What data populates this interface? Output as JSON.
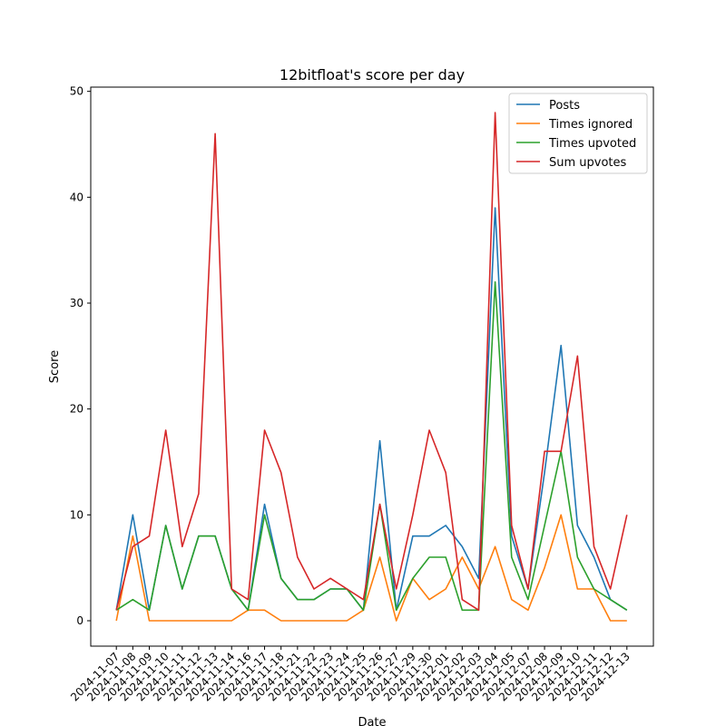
{
  "chart_data": {
    "type": "line",
    "title": "12bitfloat's score per day",
    "xlabel": "Date",
    "ylabel": "Score",
    "ylim": [
      -2.4,
      50.4
    ],
    "yticks": [
      0,
      10,
      20,
      30,
      40,
      50
    ],
    "legend": "upper-right",
    "grid": false,
    "categories": [
      "2024-11-07",
      "2024-11-08",
      "2024-11-09",
      "2024-11-10",
      "2024-11-11",
      "2024-11-12",
      "2024-11-13",
      "2024-11-14",
      "2024-11-16",
      "2024-11-17",
      "2024-11-18",
      "2024-11-21",
      "2024-11-22",
      "2024-11-23",
      "2024-11-24",
      "2024-11-25",
      "2024-11-26",
      "2024-11-27",
      "2024-11-29",
      "2024-11-30",
      "2024-12-01",
      "2024-12-02",
      "2024-12-03",
      "2024-12-04",
      "2024-12-05",
      "2024-12-07",
      "2024-12-08",
      "2024-12-09",
      "2024-12-10",
      "2024-12-11",
      "2024-12-12",
      "2024-12-13"
    ],
    "series": [
      {
        "name": "Posts",
        "color": "#1f77b4",
        "values": [
          1,
          10,
          1,
          9,
          3,
          8,
          8,
          3,
          1,
          11,
          4,
          2,
          2,
          3,
          3,
          1,
          17,
          1,
          8,
          8,
          9,
          7,
          4,
          39,
          8,
          3,
          14,
          26,
          9,
          6,
          2,
          1
        ]
      },
      {
        "name": "Times ignored",
        "color": "#ff7f0e",
        "values": [
          0,
          8,
          0,
          0,
          0,
          0,
          0,
          0,
          1,
          1,
          0,
          0,
          0,
          0,
          0,
          1,
          6,
          0,
          4,
          2,
          3,
          6,
          3,
          7,
          2,
          1,
          5,
          10,
          3,
          3,
          0,
          0
        ]
      },
      {
        "name": "Times upvoted",
        "color": "#2ca02c",
        "values": [
          1,
          2,
          1,
          9,
          3,
          8,
          8,
          3,
          1,
          10,
          4,
          2,
          2,
          3,
          3,
          1,
          11,
          1,
          4,
          6,
          6,
          1,
          1,
          32,
          6,
          2,
          9,
          16,
          6,
          3,
          2,
          1
        ]
      },
      {
        "name": "Sum upvotes",
        "color": "#d62728",
        "values": [
          1,
          7,
          8,
          18,
          7,
          12,
          46,
          3,
          2,
          18,
          14,
          6,
          3,
          4,
          3,
          2,
          11,
          3,
          10,
          18,
          14,
          2,
          1,
          48,
          9,
          3,
          16,
          16,
          25,
          7,
          3,
          10
        ]
      }
    ]
  }
}
